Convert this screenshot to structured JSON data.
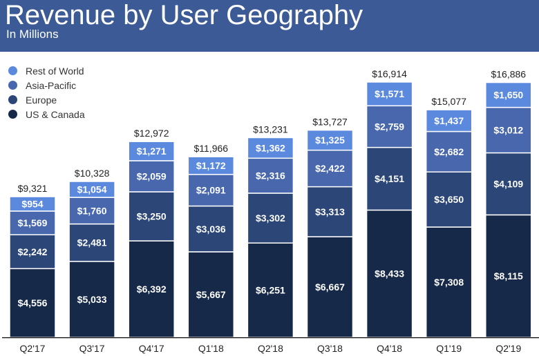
{
  "title": "Revenue by User Geography",
  "subtitle": "In Millions",
  "chart_data": {
    "type": "bar",
    "stacked": true,
    "title": "Revenue by User Geography",
    "subtitle": "In Millions",
    "legend_position": "top-left",
    "grid": false,
    "categories": [
      "Q2'17",
      "Q3'17",
      "Q4'17",
      "Q1'18",
      "Q2'18",
      "Q3'18",
      "Q4'18",
      "Q1'19",
      "Q2'19"
    ],
    "series": [
      {
        "name": "US & Canada",
        "color": "#172949",
        "values": [
          4556,
          5033,
          6392,
          5667,
          6251,
          6667,
          8433,
          7308,
          8115
        ]
      },
      {
        "name": "Europe",
        "color": "#2b4677",
        "values": [
          2242,
          2481,
          3250,
          3036,
          3302,
          3313,
          4151,
          3650,
          4109
        ]
      },
      {
        "name": "Asia-Pacific",
        "color": "#4867ad",
        "values": [
          1569,
          1760,
          2059,
          2091,
          2316,
          2422,
          2759,
          2682,
          3012
        ]
      },
      {
        "name": "Rest of World",
        "color": "#5b89de",
        "values": [
          954,
          1054,
          1271,
          1172,
          1362,
          1325,
          1571,
          1437,
          1650
        ]
      }
    ],
    "totals": [
      9321,
      10328,
      12972,
      11966,
      13231,
      13727,
      16914,
      15077,
      16886
    ],
    "value_prefix": "$"
  }
}
